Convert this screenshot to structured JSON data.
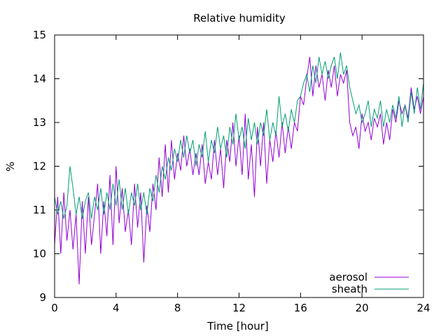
{
  "chart_data": {
    "type": "line",
    "title": "Relative humidity",
    "xlabel": "Time [hour]",
    "ylabel": "%",
    "xlim": [
      0,
      24
    ],
    "ylim": [
      9,
      15
    ],
    "xticks": [
      0,
      4,
      8,
      12,
      16,
      20,
      24
    ],
    "yticks": [
      9,
      10,
      11,
      12,
      13,
      14,
      15
    ],
    "grid": false,
    "legend_position": "bottom-right",
    "series": [
      {
        "name": "aerosol",
        "color": "#9400d3",
        "x": [
          0,
          0.2,
          0.4,
          0.6,
          0.8,
          1.0,
          1.2,
          1.4,
          1.6,
          1.8,
          2.0,
          2.2,
          2.4,
          2.6,
          2.8,
          3.0,
          3.2,
          3.4,
          3.6,
          3.8,
          4.0,
          4.2,
          4.4,
          4.6,
          4.8,
          5.0,
          5.2,
          5.4,
          5.6,
          5.8,
          6.0,
          6.2,
          6.4,
          6.6,
          6.8,
          7.0,
          7.2,
          7.4,
          7.6,
          7.8,
          8.0,
          8.2,
          8.4,
          8.6,
          8.8,
          9.0,
          9.2,
          9.4,
          9.6,
          9.8,
          10.0,
          10.2,
          10.4,
          10.6,
          10.8,
          11.0,
          11.2,
          11.4,
          11.6,
          11.8,
          12.0,
          12.2,
          12.4,
          12.6,
          12.8,
          13.0,
          13.2,
          13.4,
          13.6,
          13.8,
          14.0,
          14.2,
          14.4,
          14.6,
          14.8,
          15.0,
          15.2,
          15.4,
          15.6,
          15.8,
          16.0,
          16.2,
          16.4,
          16.6,
          16.8,
          17.0,
          17.2,
          17.4,
          17.6,
          17.8,
          18.0,
          18.2,
          18.4,
          18.6,
          18.8,
          19.0,
          19.2,
          19.4,
          19.6,
          19.8,
          20.0,
          20.2,
          20.4,
          20.6,
          20.8,
          21.0,
          21.2,
          21.4,
          21.6,
          21.8,
          22.0,
          22.2,
          22.4,
          22.6,
          22.8,
          23.0,
          23.2,
          23.4,
          23.6,
          23.8,
          24.0
        ],
        "values": [
          10.2,
          11.3,
          10.0,
          11.4,
          10.3,
          11.0,
          10.1,
          10.9,
          9.3,
          11.2,
          10.0,
          11.3,
          10.2,
          10.9,
          11.6,
          10.0,
          11.2,
          10.4,
          11.8,
          10.2,
          12.0,
          10.7,
          11.5,
          10.5,
          11.0,
          10.2,
          11.6,
          10.6,
          11.4,
          9.8,
          11.1,
          10.5,
          11.6,
          11.0,
          12.2,
          11.3,
          12.5,
          11.4,
          12.6,
          11.7,
          12.3,
          11.9,
          12.7,
          12.0,
          12.4,
          11.8,
          12.3,
          11.8,
          12.5,
          11.6,
          12.1,
          11.7,
          12.6,
          11.8,
          12.4,
          11.5,
          12.6,
          12.1,
          13.0,
          12.0,
          12.7,
          11.8,
          13.2,
          11.7,
          12.5,
          11.3,
          12.9,
          12.0,
          13.0,
          11.6,
          12.6,
          12.1,
          12.8,
          12.2,
          13.0,
          12.3,
          12.9,
          12.4,
          13.0,
          12.8,
          13.6,
          13.4,
          14.0,
          14.5,
          13.6,
          14.3,
          13.8,
          14.1,
          13.5,
          14.2,
          13.8,
          14.3,
          13.6,
          14.1,
          13.9,
          14.2,
          13.0,
          12.7,
          12.9,
          12.4,
          13.2,
          12.8,
          13.0,
          12.6,
          13.1,
          12.9,
          13.2,
          12.5,
          13.0,
          12.6,
          13.3,
          13.0,
          13.5,
          13.2,
          13.4,
          13.1,
          13.8,
          13.3,
          13.6,
          13.2,
          13.6
        ]
      },
      {
        "name": "sheath",
        "color": "#009e73",
        "x": [
          0,
          0.2,
          0.4,
          0.6,
          0.8,
          1.0,
          1.2,
          1.4,
          1.6,
          1.8,
          2.0,
          2.2,
          2.4,
          2.6,
          2.8,
          3.0,
          3.2,
          3.4,
          3.6,
          3.8,
          4.0,
          4.2,
          4.4,
          4.6,
          4.8,
          5.0,
          5.2,
          5.4,
          5.6,
          5.8,
          6.0,
          6.2,
          6.4,
          6.6,
          6.8,
          7.0,
          7.2,
          7.4,
          7.6,
          7.8,
          8.0,
          8.2,
          8.4,
          8.6,
          8.8,
          9.0,
          9.2,
          9.4,
          9.6,
          9.8,
          10.0,
          10.2,
          10.4,
          10.6,
          10.8,
          11.0,
          11.2,
          11.4,
          11.6,
          11.8,
          12.0,
          12.2,
          12.4,
          12.6,
          12.8,
          13.0,
          13.2,
          13.4,
          13.6,
          13.8,
          14.0,
          14.2,
          14.4,
          14.6,
          14.8,
          15.0,
          15.2,
          15.4,
          15.6,
          15.8,
          16.0,
          16.2,
          16.4,
          16.6,
          16.8,
          17.0,
          17.2,
          17.4,
          17.6,
          17.8,
          18.0,
          18.2,
          18.4,
          18.6,
          18.8,
          19.0,
          19.2,
          19.4,
          19.6,
          19.8,
          20.0,
          20.2,
          20.4,
          20.6,
          20.8,
          21.0,
          21.2,
          21.4,
          21.6,
          21.8,
          22.0,
          22.2,
          22.4,
          22.6,
          22.8,
          23.0,
          23.2,
          23.4,
          23.6,
          23.8,
          24.0
        ],
        "values": [
          11.3,
          10.9,
          11.2,
          10.8,
          11.1,
          12.0,
          11.5,
          10.9,
          11.3,
          10.8,
          11.2,
          11.4,
          10.8,
          11.3,
          11.0,
          11.5,
          10.9,
          11.4,
          11.0,
          11.6,
          11.1,
          11.7,
          11.0,
          11.5,
          10.9,
          11.4,
          11.1,
          11.6,
          11.0,
          11.4,
          10.9,
          11.5,
          11.2,
          11.8,
          11.4,
          12.0,
          11.7,
          12.2,
          11.9,
          12.4,
          12.1,
          12.6,
          12.2,
          12.7,
          12.3,
          12.6,
          12.0,
          12.5,
          12.2,
          12.8,
          12.1,
          12.6,
          12.3,
          12.9,
          12.4,
          12.7,
          12.2,
          12.9,
          12.5,
          13.2,
          12.6,
          12.9,
          12.4,
          13.1,
          12.6,
          13.0,
          12.5,
          13.0,
          12.7,
          13.3,
          12.6,
          13.0,
          12.7,
          13.6,
          12.9,
          13.2,
          12.8,
          13.3,
          13.0,
          13.5,
          13.6,
          13.9,
          14.1,
          13.7,
          14.3,
          13.9,
          14.5,
          14.1,
          14.4,
          14.0,
          14.3,
          14.5,
          14.0,
          14.6,
          14.1,
          14.3,
          13.8,
          13.5,
          13.2,
          13.4,
          13.0,
          13.2,
          13.5,
          12.9,
          13.3,
          13.1,
          13.5,
          12.9,
          13.3,
          13.0,
          13.4,
          13.1,
          13.6,
          12.9,
          13.4,
          13.0,
          13.7,
          13.2,
          13.8,
          13.3,
          13.9
        ]
      }
    ]
  }
}
